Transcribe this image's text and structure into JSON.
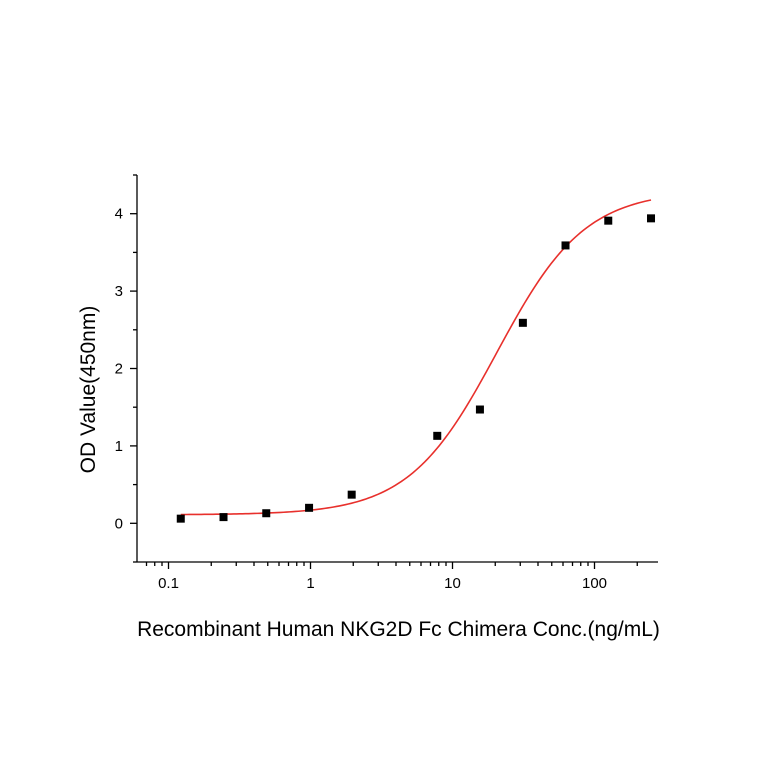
{
  "chart_data": {
    "type": "scatter",
    "title": "",
    "xlabel": "Recombinant Human NKG2D Fc Chimera Conc.(ng/mL)",
    "ylabel": "OD Value(450nm)",
    "x_scale": "log",
    "xlim": [
      0.06,
      280
    ],
    "ylim": [
      -0.5,
      4.5
    ],
    "x_ticks": [
      0.1,
      1,
      10,
      100
    ],
    "x_tick_labels": [
      "0.1",
      "1",
      "10",
      "100"
    ],
    "y_ticks": [
      0,
      1,
      2,
      3,
      4
    ],
    "y_tick_labels": [
      "0",
      "1",
      "2",
      "3",
      "4"
    ],
    "grid": false,
    "legend": "none",
    "series": [
      {
        "kind": "points",
        "marker": "square",
        "color": "#000000",
        "x": [
          0.122,
          0.244,
          0.488,
          0.977,
          1.95,
          7.81,
          15.6,
          31.3,
          62.5,
          125,
          250
        ],
        "y": [
          0.06,
          0.08,
          0.13,
          0.2,
          0.37,
          1.13,
          1.47,
          2.59,
          3.59,
          3.91,
          3.94
        ]
      },
      {
        "kind": "fit",
        "model": "4PL",
        "color": "#e8302c",
        "x_range": [
          0.122,
          250
        ],
        "params": {
          "bottom": 0.11,
          "top": 4.3,
          "ec50": 20.5,
          "hill": 1.4
        }
      }
    ]
  }
}
